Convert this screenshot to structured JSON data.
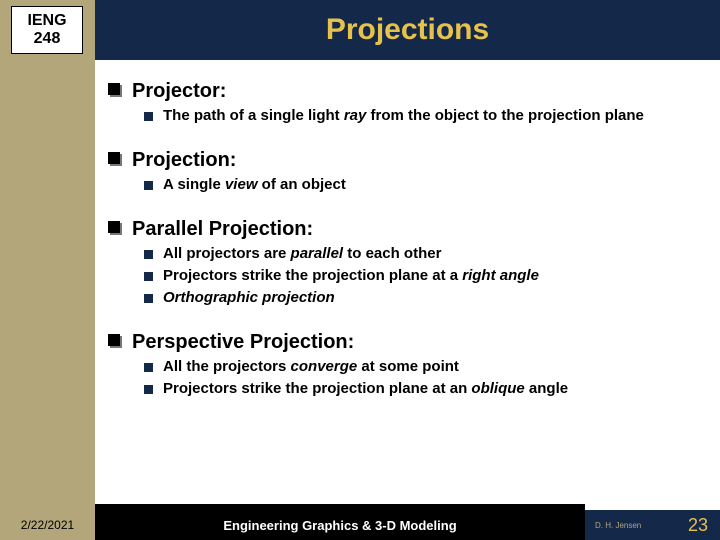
{
  "course": {
    "code1": "IENG",
    "code2": "248"
  },
  "title": "Projections",
  "sections": [
    {
      "heading": "Projector:",
      "items": [
        {
          "pre": "The path of a single light ",
          "em": "ray",
          "post": " from the object to the projection plane"
        }
      ]
    },
    {
      "heading": "Projection:",
      "items": [
        {
          "pre": " A single ",
          "em": "view",
          "post": " of an object"
        }
      ]
    },
    {
      "heading": "Parallel Projection:",
      "items": [
        {
          "pre": "All projectors are ",
          "em": "parallel",
          "post": " to each other"
        },
        {
          "pre": "Projectors strike the projection plane at a ",
          "em": "right angle",
          "post": ""
        },
        {
          "pre": "",
          "em": "Orthographic projection",
          "post": ""
        }
      ]
    },
    {
      "heading": "Perspective Projection:",
      "items": [
        {
          "pre": "All the projectors ",
          "em": "converge",
          "post": " at some point"
        },
        {
          "pre": "Projectors strike the projection plane at an ",
          "em": "oblique",
          "post": " angle"
        }
      ]
    }
  ],
  "footer": {
    "date": "2/22/2021",
    "subtitle": "Engineering Graphics & 3-D Modeling",
    "author": "D. H. Jensen",
    "page": "23"
  },
  "colors": {
    "sidebar": "#b2a67a",
    "header_bg": "#14284a",
    "header_text": "#e6c24d",
    "bullet_small": "#14284a",
    "footer_mid_bg": "#000000"
  }
}
